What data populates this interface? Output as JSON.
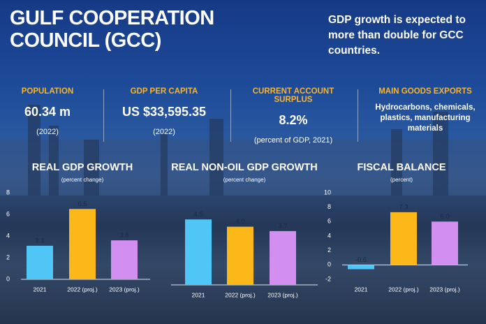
{
  "header": {
    "title": "GULF COOPERATION COUNCIL (GCC)",
    "tagline": "GDP growth is expected to more than double for GCC countries."
  },
  "stats": [
    {
      "label": "POPULATION",
      "value": "60.34 m",
      "note": "(2022)"
    },
    {
      "label": "GDP PER CAPITA",
      "value": "US $33,595.35",
      "note": "(2022)"
    },
    {
      "label": "CURRENT ACCOUNT SURPLUS",
      "value": "8.2%",
      "note": "(percent of GDP, 2021)"
    },
    {
      "label": "MAIN GOODS EXPORTS",
      "value": "Hydrocarbons, chemicals, plastics, manufacturing materials"
    }
  ],
  "chart_data": [
    {
      "type": "bar",
      "title": "REAL GDP GROWTH",
      "subtitle": "(percent change)",
      "categories": [
        "2021",
        "2022 (proj.)",
        "2023 (proj.)"
      ],
      "values": [
        3.1,
        6.5,
        3.6
      ],
      "colors": [
        "#4fc6f5",
        "#fbb818",
        "#d38ff0"
      ],
      "ylim": [
        0,
        8
      ],
      "yticks": [
        0,
        2,
        4,
        6,
        8
      ]
    },
    {
      "type": "bar",
      "title": "REAL NON-OIL GDP GROWTH",
      "subtitle": "(percent change)",
      "categories": [
        "2021",
        "2022 (proj.)",
        "2023 (proj.)"
      ],
      "values": [
        4.5,
        4.0,
        3.7
      ],
      "value_labels": [
        "4.5",
        "4.0",
        "3.7"
      ],
      "colors": [
        "#4fc6f5",
        "#fbb818",
        "#d38ff0"
      ],
      "ylim": [
        0,
        6
      ]
    },
    {
      "type": "bar",
      "title": "FISCAL BALANCE",
      "subtitle": "(percent)",
      "categories": [
        "2021",
        "2022 (proj.)",
        "2023 (proj.)"
      ],
      "values": [
        -0.6,
        7.3,
        6.0
      ],
      "value_labels": [
        "-0.6",
        "7.3",
        "6.0"
      ],
      "colors": [
        "#4fc6f5",
        "#fbb818",
        "#d38ff0"
      ],
      "ylim": [
        -2,
        10
      ],
      "yticks": [
        -2,
        0,
        2,
        4,
        6,
        8,
        10
      ]
    }
  ]
}
